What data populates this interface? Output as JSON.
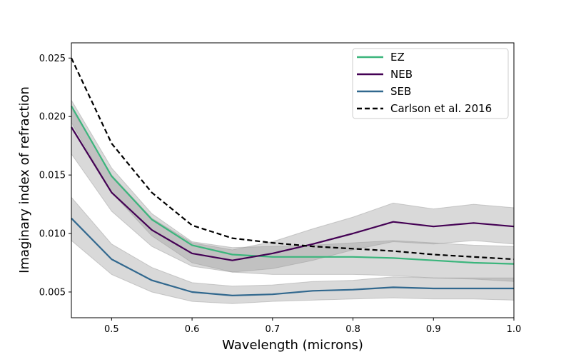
{
  "chart_data": {
    "type": "line",
    "title": "",
    "xlabel": "Wavelength (microns)",
    "ylabel": "Imaginary index of refraction",
    "xlim": [
      0.45,
      1.0
    ],
    "ylim": [
      0.0028,
      0.0263
    ],
    "grid": false,
    "legend_position": "upper-right",
    "x_ticks": [
      {
        "value": 0.5,
        "label": "0.5"
      },
      {
        "value": 0.6,
        "label": "0.6"
      },
      {
        "value": 0.7,
        "label": "0.7"
      },
      {
        "value": 0.8,
        "label": "0.8"
      },
      {
        "value": 0.9,
        "label": "0.9"
      },
      {
        "value": 1.0,
        "label": "1.0"
      }
    ],
    "y_ticks": [
      {
        "value": 0.005,
        "label": "0.005"
      },
      {
        "value": 0.01,
        "label": "0.010"
      },
      {
        "value": 0.015,
        "label": "0.015"
      },
      {
        "value": 0.02,
        "label": "0.020"
      },
      {
        "value": 0.025,
        "label": "0.025"
      }
    ],
    "x": [
      0.45,
      0.5,
      0.55,
      0.6,
      0.65,
      0.7,
      0.75,
      0.8,
      0.85,
      0.9,
      0.95,
      1.0
    ],
    "series": [
      {
        "name": "EZ",
        "key": "ez",
        "color": "#3bb57c",
        "style": "solid",
        "values": [
          0.0209,
          0.0149,
          0.0112,
          0.009,
          0.0082,
          0.008,
          0.008,
          0.008,
          0.0079,
          0.0077,
          0.0075,
          0.0074
        ],
        "band_lower": [
          0.0195,
          0.0135,
          0.0098,
          0.0075,
          0.0067,
          0.0065,
          0.0065,
          0.0065,
          0.0064,
          0.0062,
          0.0061,
          0.0059
        ],
        "band_upper": [
          0.0214,
          0.0156,
          0.0117,
          0.0093,
          0.0088,
          0.0089,
          0.009,
          0.0092,
          0.0094,
          0.0092,
          0.009,
          0.0089
        ]
      },
      {
        "name": "NEB",
        "key": "neb",
        "color": "#440154",
        "style": "solid",
        "values": [
          0.0191,
          0.0135,
          0.0103,
          0.0083,
          0.0077,
          0.0083,
          0.0091,
          0.01,
          0.011,
          0.0106,
          0.0109,
          0.0106
        ],
        "band_lower": [
          0.0168,
          0.0119,
          0.0089,
          0.0072,
          0.0067,
          0.007,
          0.0077,
          0.0086,
          0.0093,
          0.0091,
          0.0094,
          0.0091
        ],
        "band_upper": [
          0.0207,
          0.015,
          0.0113,
          0.0092,
          0.0086,
          0.0093,
          0.0104,
          0.0114,
          0.0126,
          0.0121,
          0.0125,
          0.0122
        ]
      },
      {
        "name": "SEB",
        "key": "seb",
        "color": "#31688e",
        "style": "solid",
        "values": [
          0.0113,
          0.0078,
          0.006,
          0.005,
          0.0047,
          0.0048,
          0.0051,
          0.0052,
          0.0054,
          0.0053,
          0.0053,
          0.0053
        ],
        "band_lower": [
          0.0094,
          0.0065,
          0.005,
          0.0042,
          0.004,
          0.0042,
          0.0043,
          0.0044,
          0.0045,
          0.0044,
          0.0044,
          0.0043
        ],
        "band_upper": [
          0.0131,
          0.0091,
          0.0071,
          0.0058,
          0.0055,
          0.0056,
          0.0059,
          0.006,
          0.0063,
          0.0062,
          0.0062,
          0.0062
        ]
      },
      {
        "name": "Carlson et al. 2016",
        "key": "carlson",
        "color": "#000000",
        "style": "dashed",
        "values": [
          0.025,
          0.0177,
          0.0135,
          0.0107,
          0.0096,
          0.0092,
          0.0089,
          0.0087,
          0.0085,
          0.0082,
          0.008,
          0.0078
        ]
      }
    ]
  }
}
